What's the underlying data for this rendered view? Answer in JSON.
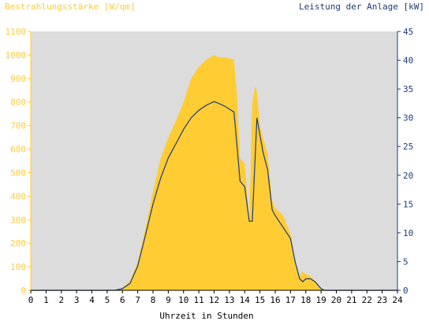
{
  "chart_data": {
    "type": "area",
    "title_left": "Bestrahlungsstärke [W/qm]",
    "title_right": "Leistung der Anlage [kW]",
    "xlabel": "Uhrzeit in Stunden",
    "xlim": [
      0,
      24
    ],
    "xticks": [
      "0",
      "1",
      "2",
      "3",
      "4",
      "5",
      "6",
      "7",
      "8",
      "9",
      "10",
      "11",
      "12",
      "13",
      "14",
      "15",
      "16",
      "17",
      "18",
      "19",
      "20",
      "21",
      "22",
      "23",
      "24"
    ],
    "ylim_left": [
      0,
      1100
    ],
    "yticks_left": [
      "0",
      "100",
      "200",
      "300",
      "400",
      "500",
      "600",
      "700",
      "800",
      "900",
      "1000",
      "1100"
    ],
    "ylim_right": [
      0,
      45
    ],
    "yticks_right": [
      "0",
      "5",
      "10",
      "15",
      "20",
      "25",
      "30",
      "35",
      "40",
      "45"
    ],
    "grid": false,
    "series": [
      {
        "axis": "left",
        "style": "area",
        "x": [
          0,
          5.5,
          6.0,
          6.5,
          7.0,
          7.5,
          8.0,
          8.5,
          9.0,
          9.5,
          10.0,
          10.5,
          11.0,
          11.5,
          12.0,
          12.3,
          12.7,
          13.0,
          13.3,
          13.5,
          13.7,
          14.0,
          14.3,
          14.5,
          14.7,
          14.8,
          15.0,
          15.2,
          15.5,
          15.8,
          16.0,
          16.5,
          17.0,
          17.3,
          17.6,
          17.8,
          18.0,
          18.3,
          18.6,
          19.0,
          19.2,
          24
        ],
        "values": [
          0,
          0,
          10,
          40,
          120,
          260,
          420,
          560,
          650,
          720,
          800,
          900,
          950,
          980,
          1000,
          990,
          990,
          985,
          980,
          820,
          560,
          540,
          300,
          800,
          870,
          840,
          700,
          650,
          580,
          380,
          350,
          320,
          240,
          120,
          60,
          80,
          70,
          60,
          40,
          10,
          0,
          0
        ]
      },
      {
        "axis": "right",
        "style": "line",
        "x": [
          0,
          5.5,
          6.0,
          6.5,
          7.0,
          7.5,
          8.0,
          8.5,
          9.0,
          9.5,
          10.0,
          10.5,
          11.0,
          11.5,
          12.0,
          12.3,
          12.7,
          13.0,
          13.3,
          13.5,
          13.7,
          14.0,
          14.3,
          14.5,
          14.8,
          15.0,
          15.2,
          15.5,
          15.8,
          16.0,
          16.5,
          17.0,
          17.3,
          17.6,
          17.8,
          18.0,
          18.3,
          18.6,
          19.0,
          19.2,
          24
        ],
        "values": [
          0,
          0,
          0.3,
          1.2,
          4.2,
          9.5,
          15,
          19.5,
          23,
          25.5,
          28,
          30,
          31.3,
          32.2,
          32.8,
          32.5,
          32,
          31.5,
          31,
          25,
          19,
          18,
          12,
          12,
          30,
          27,
          24,
          21,
          14,
          13,
          11,
          9,
          5,
          2,
          1.5,
          2,
          2,
          1.5,
          0.3,
          0,
          0
        ]
      }
    ],
    "colors": {
      "irradiance_fill": "#ffcc33",
      "power_line": "#1f3a7a",
      "plot_background": "#dcdcdc",
      "left_axis": "#ffcc33",
      "right_axis": "#1f3a7a"
    }
  }
}
